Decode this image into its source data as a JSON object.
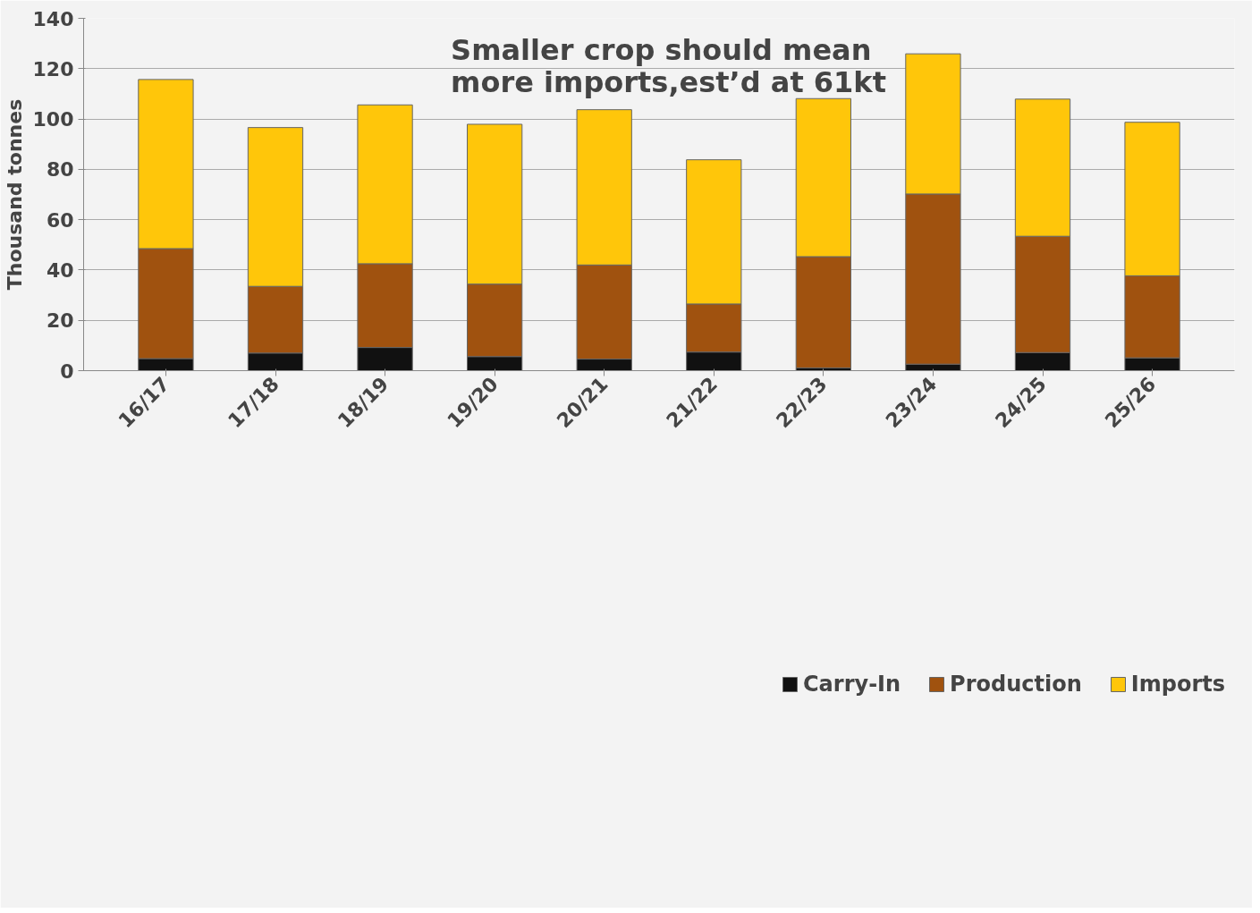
{
  "chart_data": {
    "type": "bar",
    "stacked": true,
    "categories": [
      "16/17",
      "17/18",
      "18/19",
      "19/20",
      "20/21",
      "21/22",
      "22/23",
      "23/24",
      "24/25",
      "25/26"
    ],
    "series": [
      {
        "name": "Carry-In",
        "color": "#111111",
        "values": [
          4.8,
          7.0,
          9.2,
          5.6,
          4.6,
          7.4,
          1.1,
          2.6,
          7.2,
          5.1
        ]
      },
      {
        "name": "Production",
        "color": "#a0520f",
        "values": [
          43.7,
          26.5,
          33.3,
          28.8,
          37.4,
          19.1,
          44.2,
          67.6,
          46.2,
          32.6
        ]
      },
      {
        "name": "Imports",
        "color": "#ffc60a",
        "values": [
          67.2,
          63.1,
          63.1,
          63.5,
          61.7,
          57.3,
          62.8,
          55.7,
          54.5,
          61.0
        ]
      }
    ],
    "ylabel": "Thousand tonnes",
    "ylim": [
      0,
      140
    ],
    "yticks": [
      0,
      20,
      40,
      60,
      80,
      100,
      120,
      140
    ],
    "grid": "y",
    "legend": "bottom",
    "annotations": [
      "Smaller crop should mean\nmore imports,est’d at 61kt"
    ]
  }
}
